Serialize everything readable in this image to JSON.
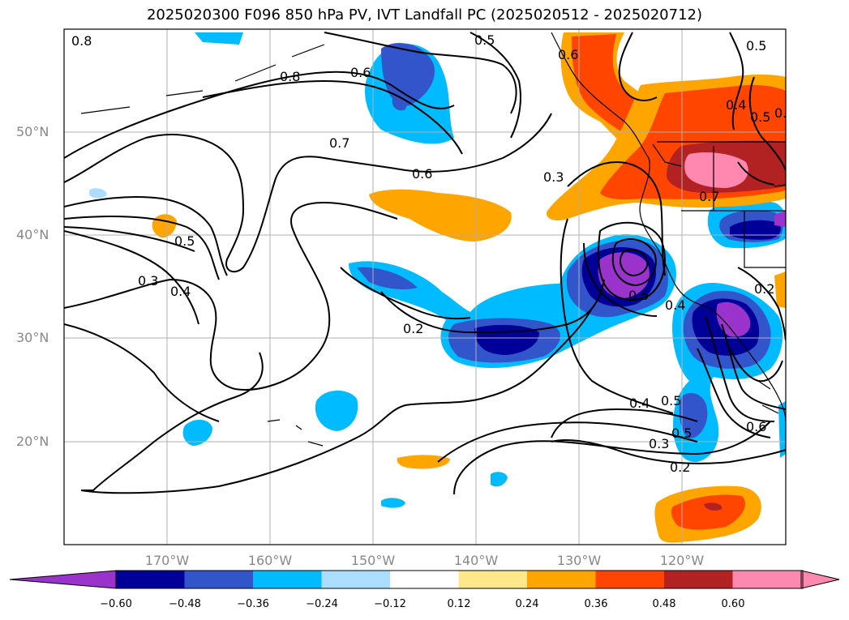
{
  "title": "2025020300 F096 850 hPa PV, IVT Landfall PC (2025020512 - 2025020712)",
  "map": {
    "lon_labels": [
      "170°W",
      "160°W",
      "150°W",
      "140°W",
      "130°W",
      "120°W"
    ],
    "lat_labels": [
      "50°N",
      "40°N",
      "30°N",
      "20°N"
    ],
    "contour_labels": [
      "0.8",
      "0.6",
      "0.5",
      "0.6",
      "0.8",
      "0.7",
      "0.6",
      "0.3",
      "0.5",
      "0.3",
      "0.4",
      "0.2",
      "0.5",
      "0.4",
      "0.5",
      "0.4",
      "0.5",
      "0.6",
      "0.7",
      "0.2",
      "0.6",
      "0.2",
      "0.5",
      "0.4",
      "0.3",
      "0.5"
    ],
    "land_color": "#ffffff",
    "grid_color": "#b0b0b0"
  },
  "colorbar": {
    "ticks": [
      "−0.60",
      "−0.48",
      "−0.36",
      "−0.24",
      "−0.12",
      "0.12",
      "0.24",
      "0.36",
      "0.48",
      "0.60"
    ],
    "colors": [
      "#9933cc",
      "#000099",
      "#3355cc",
      "#00bbff",
      "#aaddff",
      "#ffffff",
      "#ffe88a",
      "#ffa500",
      "#ff4500",
      "#b22222",
      "#ff88b0"
    ]
  }
}
